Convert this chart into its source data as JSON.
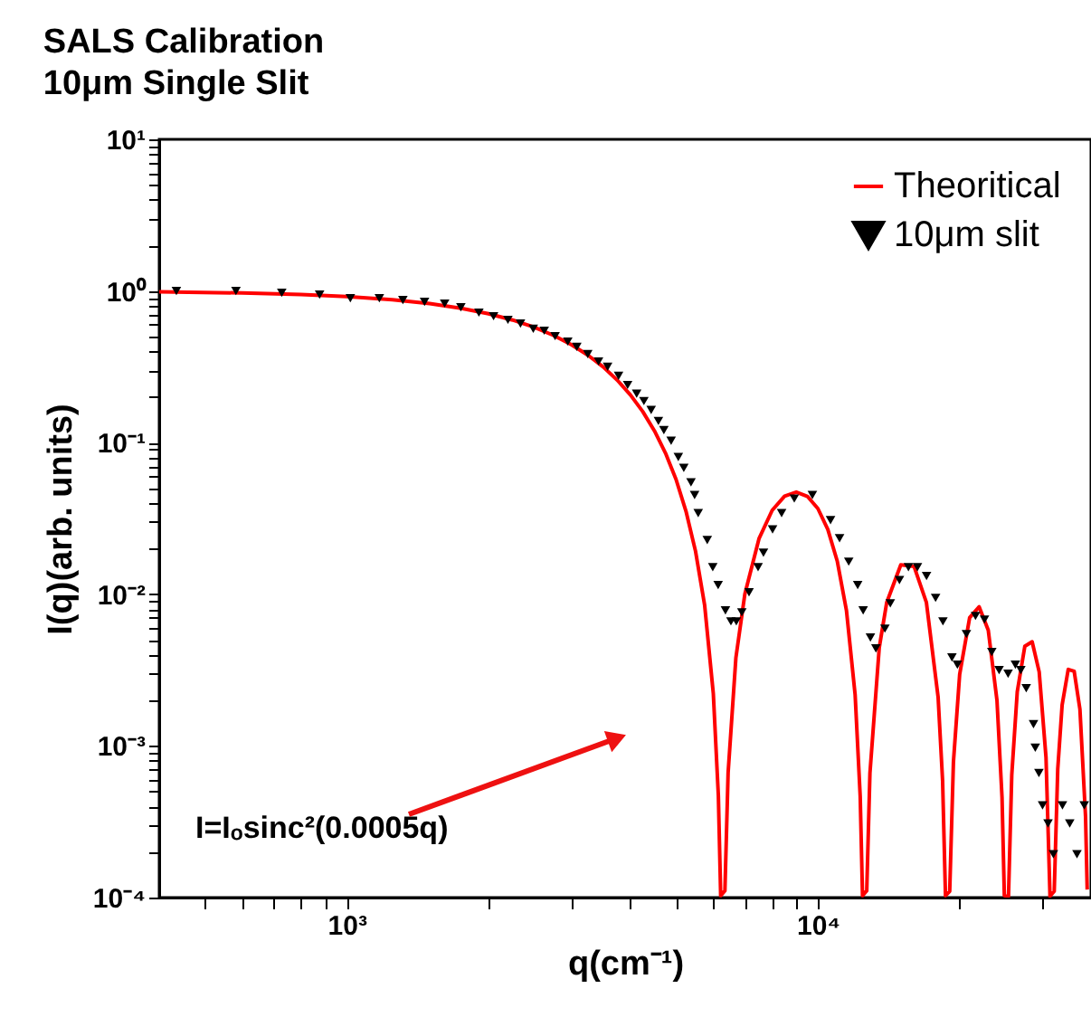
{
  "chart_data": {
    "type": "line",
    "title": "SALS Calibration",
    "subtitle": "10μm Single Slit",
    "xlabel": "q(cm⁻¹)",
    "ylabel": "I(q)(arb. units)",
    "log": "xy",
    "grid": false,
    "legend": "top right",
    "xlim": [
      400,
      38000
    ],
    "ylim": [
      0.0001,
      10
    ],
    "xticks": [
      {
        "value": 500,
        "label": null
      },
      {
        "value": 600,
        "label": null
      },
      {
        "value": 700,
        "label": null
      },
      {
        "value": 800,
        "label": null
      },
      {
        "value": 900,
        "label": null
      },
      {
        "value": 1000,
        "label": "10³"
      },
      {
        "value": 2000,
        "label": null
      },
      {
        "value": 3000,
        "label": null
      },
      {
        "value": 4000,
        "label": null
      },
      {
        "value": 5000,
        "label": null
      },
      {
        "value": 6000,
        "label": null
      },
      {
        "value": 7000,
        "label": null
      },
      {
        "value": 8000,
        "label": null
      },
      {
        "value": 9000,
        "label": null
      },
      {
        "value": 10000,
        "label": "10⁴"
      },
      {
        "value": 20000,
        "label": null
      },
      {
        "value": 30000,
        "label": null
      }
    ],
    "yticks": [
      {
        "value": 0.0001,
        "label": "10⁻⁴"
      },
      {
        "value": 0.0002,
        "label": null
      },
      {
        "value": 0.0003,
        "label": null
      },
      {
        "value": 0.0004,
        "label": null
      },
      {
        "value": 0.0005,
        "label": null
      },
      {
        "value": 0.0006,
        "label": null
      },
      {
        "value": 0.0007,
        "label": null
      },
      {
        "value": 0.0008,
        "label": null
      },
      {
        "value": 0.0009,
        "label": null
      },
      {
        "value": 0.001,
        "label": "10⁻³"
      },
      {
        "value": 0.002,
        "label": null
      },
      {
        "value": 0.003,
        "label": null
      },
      {
        "value": 0.004,
        "label": null
      },
      {
        "value": 0.005,
        "label": null
      },
      {
        "value": 0.006,
        "label": null
      },
      {
        "value": 0.007,
        "label": null
      },
      {
        "value": 0.008,
        "label": null
      },
      {
        "value": 0.009,
        "label": null
      },
      {
        "value": 0.01,
        "label": "10⁻²"
      },
      {
        "value": 0.02,
        "label": null
      },
      {
        "value": 0.03,
        "label": null
      },
      {
        "value": 0.04,
        "label": null
      },
      {
        "value": 0.05,
        "label": null
      },
      {
        "value": 0.06,
        "label": null
      },
      {
        "value": 0.07,
        "label": null
      },
      {
        "value": 0.08,
        "label": null
      },
      {
        "value": 0.09,
        "label": null
      },
      {
        "value": 0.1,
        "label": "10⁻¹"
      },
      {
        "value": 0.2,
        "label": null
      },
      {
        "value": 0.3,
        "label": null
      },
      {
        "value": 0.4,
        "label": null
      },
      {
        "value": 0.5,
        "label": null
      },
      {
        "value": 0.6,
        "label": null
      },
      {
        "value": 0.7,
        "label": null
      },
      {
        "value": 0.8,
        "label": null
      },
      {
        "value": 0.9,
        "label": null
      },
      {
        "value": 1,
        "label": "10⁰"
      },
      {
        "value": 2,
        "label": null
      },
      {
        "value": 3,
        "label": null
      },
      {
        "value": 4,
        "label": null
      },
      {
        "value": 5,
        "label": null
      },
      {
        "value": 6,
        "label": null
      },
      {
        "value": 7,
        "label": null
      },
      {
        "value": 8,
        "label": null
      },
      {
        "value": 9,
        "label": null
      },
      {
        "value": 10,
        "label": "10¹"
      }
    ],
    "annotations": [
      "I=Iₒsinc²(0.0005q)"
    ],
    "series": [
      {
        "name": "Theoritical",
        "type": "line",
        "color": "#ff0000",
        "x": [
          400,
          600,
          800,
          1000,
          1250,
          1500,
          1750,
          2000,
          2250,
          2500,
          2750,
          3000,
          3250,
          3500,
          3750,
          4000,
          4250,
          4500,
          4750,
          5000,
          5250,
          5500,
          5750,
          6000,
          6150,
          6220,
          6350,
          6450,
          6700,
          7000,
          7500,
          8000,
          8500,
          9000,
          9500,
          10000,
          10500,
          11000,
          11500,
          12000,
          12300,
          12440,
          12700,
          12900,
          13500,
          14000,
          15000,
          16000,
          17000,
          18000,
          18400,
          18660,
          19050,
          19400,
          20000,
          21000,
          22000,
          23000,
          24000,
          24600,
          24880,
          25390,
          25800,
          26500,
          27500,
          28500,
          29500,
          30500,
          31100,
          31750,
          32300,
          33000,
          34000,
          35000,
          36000,
          37000,
          37300
        ],
        "values": [
          0.9868,
          0.9704,
          0.9478,
          0.9194,
          0.8764,
          0.826,
          0.7695,
          0.7081,
          0.6432,
          0.5764,
          0.509,
          0.4422,
          0.3776,
          0.3162,
          0.2589,
          0.2067,
          0.1602,
          0.1196,
          0.0852,
          0.0573,
          0.03526,
          0.01926,
          0.008507,
          0.002213,
          0.000468,
          0.000103,
          0.000111,
          0.000667,
          0.003815,
          0.010045,
          0.02323,
          0.0358,
          0.04435,
          0.04719,
          0.04426,
          0.03678,
          0.02677,
          0.01646,
          0.007837,
          0.002169,
          0.000466,
          0.000103,
          0.000111,
          0.000663,
          0.004444,
          0.008809,
          0.01564,
          0.01529,
          0.008825,
          0.002097,
          0.000587,
          0.000103,
          0.00011,
          0.000785,
          0.00296,
          0.007019,
          0.008264,
          0.005795,
          0.001999,
          0.000458,
          0.000103,
          0.000102,
          0.000645,
          0.002274,
          0.004539,
          0.004861,
          0.003077,
          0.000838,
          0.000102,
          0.00011,
          0.000702,
          0.001861,
          0.003198,
          0.003108,
          0.001741,
          0.000343,
          0.000113
        ]
      },
      {
        "name": "10μm slit",
        "type": "scatter",
        "color": "#000000",
        "marker": "triangle",
        "x": [
          435,
          582,
          728,
          876,
          1018,
          1173,
          1316,
          1463,
          1614,
          1747,
          1908,
          2050,
          2199,
          2338,
          2489,
          2626,
          2769,
          2946,
          3079,
          3248,
          3424,
          3579,
          3776,
          3947,
          4125,
          4274,
          4428,
          4588,
          4712,
          4882,
          5057,
          5194,
          5380,
          5476,
          5573,
          5825,
          5984,
          6143,
          6366,
          6539,
          6714,
          6897,
          7144,
          7467,
          7666,
          8015,
          8377,
          8913,
          9736,
          10640,
          11120,
          11630,
          12150,
          12480,
          12930,
          13280,
          13880,
          14250,
          14900,
          15570,
          16270,
          17010,
          17780,
          18430,
          19260,
          19780,
          20670,
          21610,
          22580,
          23400,
          24250,
          25340,
          26260,
          26970,
          27690,
          28690,
          28940,
          29460,
          29990,
          30800,
          31620,
          33050,
          34250,
          35480,
          36770
        ],
        "values": [
          1.0,
          1.0,
          0.973,
          0.946,
          0.896,
          0.896,
          0.872,
          0.848,
          0.826,
          0.781,
          0.72,
          0.682,
          0.645,
          0.61,
          0.563,
          0.547,
          0.504,
          0.464,
          0.428,
          0.383,
          0.343,
          0.316,
          0.276,
          0.24,
          0.21,
          0.188,
          0.164,
          0.139,
          0.121,
          0.103,
          0.0803,
          0.0681,
          0.0547,
          0.0451,
          0.0343,
          0.0228,
          0.0151,
          0.0115,
          0.00782,
          0.00663,
          0.00663,
          0.0076,
          0.0103,
          0.0151,
          0.0188,
          0.0268,
          0.0343,
          0.0428,
          0.0451,
          0.0308,
          0.0234,
          0.0164,
          0.0115,
          0.00782,
          0.00518,
          0.0044,
          0.00594,
          0.00871,
          0.0124,
          0.0151,
          0.0151,
          0.0132,
          0.00947,
          0.00663,
          0.00383,
          0.00343,
          0.00547,
          0.0072,
          0.00681,
          0.00416,
          0.00316,
          0.00299,
          0.00343,
          0.00316,
          0.0024,
          0.00139,
          0.000973,
          0.000662,
          0.000405,
          0.000308,
          0.000193,
          0.000405,
          0.000308,
          0.000193,
          0.000405
        ]
      }
    ]
  }
}
